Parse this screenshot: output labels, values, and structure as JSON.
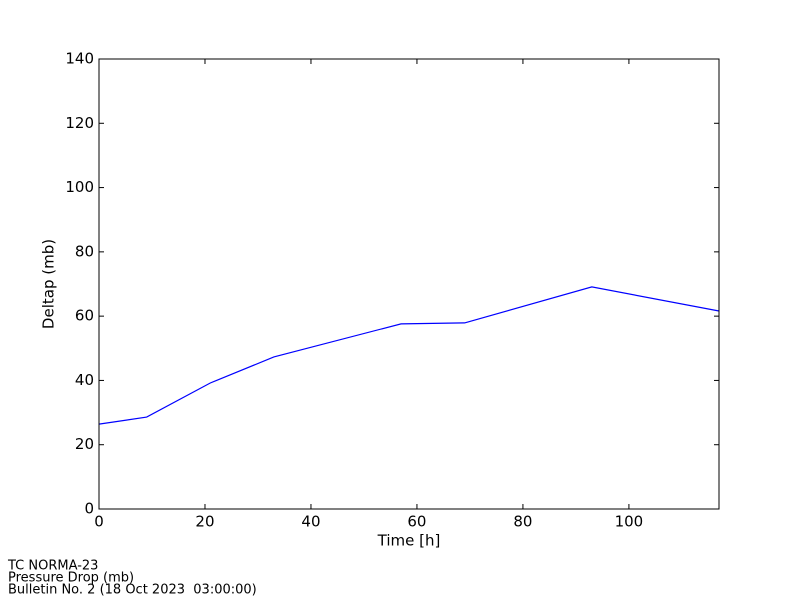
{
  "chart_data": {
    "type": "line",
    "xlabel": "Time [h]",
    "ylabel": "Deltap (mb)",
    "x": [
      0,
      9,
      21,
      33,
      57,
      69,
      93,
      117
    ],
    "series": [
      {
        "color": "#0000ff",
        "values": [
          26.4,
          28.6,
          39.2,
          47.3,
          57.6,
          57.9,
          69.1,
          61.6
        ]
      }
    ],
    "xlim": [
      0,
      117
    ],
    "xticks": [
      0,
      20,
      40,
      60,
      80,
      100
    ],
    "ylim": [
      0,
      140
    ],
    "yticks": [
      0,
      20,
      40,
      60,
      80,
      100,
      120,
      140
    ]
  },
  "footer": [
    "TC NORMA-23",
    "Pressure Drop (mb)",
    "Bulletin No. 2 (18 Oct 2023  03:00:00)"
  ]
}
